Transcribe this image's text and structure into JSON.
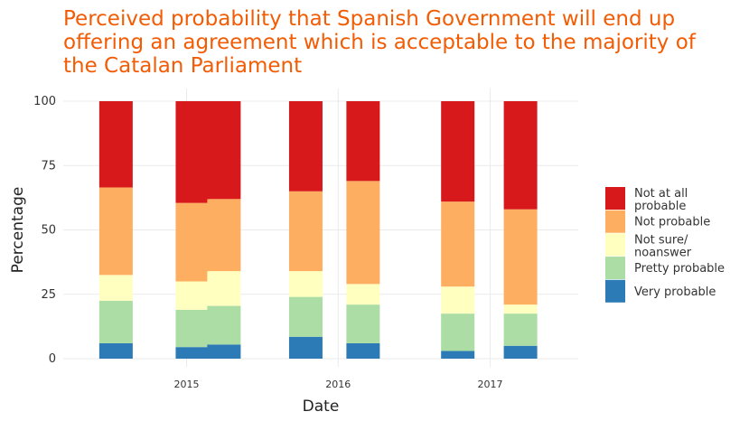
{
  "chart_data": {
    "type": "bar",
    "stacked": true,
    "title": "Perceived probability that Spanish Government will end up offering an agreement which is acceptable to the majority of the Catalan Parliament",
    "xlabel": "Date",
    "ylabel": "Percentage",
    "ylim": [
      0,
      100
    ],
    "y_ticks": [
      0,
      25,
      50,
      75,
      100
    ],
    "x_ticks": [
      "2015",
      "2016",
      "2017"
    ],
    "x_tick_dates": [
      "2015-01-01",
      "2016-01-01",
      "2017-01-01"
    ],
    "x_range": [
      "2014-03-10",
      "2017-08-01"
    ],
    "grid": true,
    "legend_position": "right",
    "categories": [
      "2014-07-15",
      "2015-01-15",
      "2015-04-01",
      "2015-10-15",
      "2016-03-01",
      "2016-10-15",
      "2017-03-15"
    ],
    "series": [
      {
        "name": "Very probable",
        "color": "#2c7bb6",
        "values": [
          6,
          4.5,
          5.5,
          8.5,
          6,
          3,
          5
        ]
      },
      {
        "name": "Pretty probable",
        "color": "#abdda4",
        "values": [
          16.5,
          14.5,
          15,
          15.5,
          15,
          14.5,
          12.5
        ]
      },
      {
        "name": "Not sure/\nnoanswer",
        "color": "#ffffbf",
        "values": [
          10,
          11,
          13.5,
          10,
          8,
          10.5,
          3.5
        ]
      },
      {
        "name": "Not probable",
        "color": "#fdae61",
        "values": [
          34,
          30.5,
          28,
          31,
          40,
          33,
          37
        ]
      },
      {
        "name": "Not at all\nprobable",
        "color": "#d7191c",
        "values": [
          33.5,
          39.5,
          38,
          35,
          31,
          39,
          42
        ]
      }
    ]
  }
}
